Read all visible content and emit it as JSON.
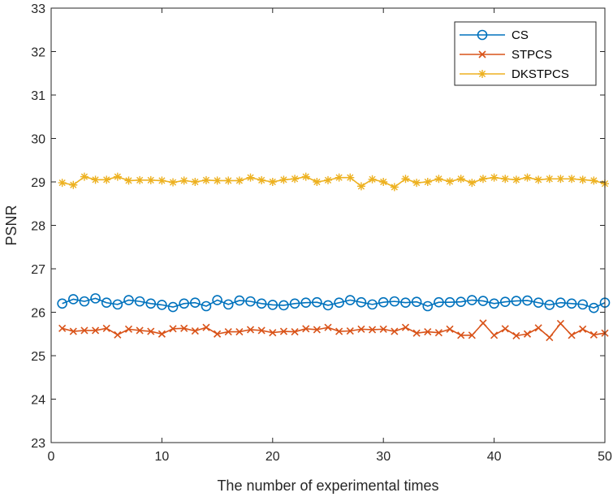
{
  "chart_data": {
    "type": "line",
    "title": "",
    "xlabel": "The number of experimental times",
    "ylabel": "PSNR",
    "xlim": [
      0,
      50
    ],
    "ylim": [
      23,
      33
    ],
    "xticks": [
      0,
      10,
      20,
      30,
      40,
      50
    ],
    "yticks": [
      23,
      24,
      25,
      26,
      27,
      28,
      29,
      30,
      31,
      32,
      33
    ],
    "grid": false,
    "legend_position": "top-right",
    "x": [
      1,
      2,
      3,
      4,
      5,
      6,
      7,
      8,
      9,
      10,
      11,
      12,
      13,
      14,
      15,
      16,
      17,
      18,
      19,
      20,
      21,
      22,
      23,
      24,
      25,
      26,
      27,
      28,
      29,
      30,
      31,
      32,
      33,
      34,
      35,
      36,
      37,
      38,
      39,
      40,
      41,
      42,
      43,
      44,
      45,
      46,
      47,
      48,
      49,
      50
    ],
    "series": [
      {
        "name": "CS",
        "color": "#0072BD",
        "marker": "circle",
        "values": [
          26.2,
          26.3,
          26.25,
          26.32,
          26.22,
          26.18,
          26.28,
          26.25,
          26.2,
          26.17,
          26.12,
          26.2,
          26.22,
          26.14,
          26.28,
          26.18,
          26.27,
          26.25,
          26.2,
          26.17,
          26.16,
          26.2,
          26.22,
          26.23,
          26.16,
          26.22,
          26.28,
          26.23,
          26.18,
          26.23,
          26.25,
          26.22,
          26.24,
          26.14,
          26.23,
          26.23,
          26.24,
          26.28,
          26.26,
          26.2,
          26.24,
          26.26,
          26.27,
          26.22,
          26.17,
          26.22,
          26.2,
          26.18,
          26.1,
          26.22
        ]
      },
      {
        "name": "STPCS",
        "color": "#D95319",
        "marker": "x",
        "values": [
          25.63,
          25.56,
          25.58,
          25.58,
          25.63,
          25.48,
          25.61,
          25.58,
          25.56,
          25.5,
          25.62,
          25.63,
          25.57,
          25.65,
          25.5,
          25.55,
          25.55,
          25.6,
          25.58,
          25.53,
          25.56,
          25.55,
          25.62,
          25.6,
          25.65,
          25.56,
          25.57,
          25.61,
          25.6,
          25.61,
          25.56,
          25.65,
          25.52,
          25.55,
          25.53,
          25.61,
          25.47,
          25.47,
          25.75,
          25.47,
          25.62,
          25.46,
          25.5,
          25.64,
          25.42,
          25.74,
          25.47,
          25.61,
          25.48,
          25.52
        ]
      },
      {
        "name": "DKSTPCS",
        "color": "#EDB120",
        "marker": "asterisk",
        "values": [
          28.98,
          28.93,
          29.12,
          29.05,
          29.05,
          29.12,
          29.03,
          29.04,
          29.04,
          29.03,
          28.99,
          29.03,
          29.0,
          29.04,
          29.03,
          29.03,
          29.03,
          29.1,
          29.04,
          29.0,
          29.05,
          29.07,
          29.12,
          29.0,
          29.04,
          29.1,
          29.1,
          28.9,
          29.06,
          29.0,
          28.88,
          29.07,
          28.98,
          29.0,
          29.07,
          29.01,
          29.07,
          28.98,
          29.07,
          29.1,
          29.07,
          29.05,
          29.1,
          29.05,
          29.07,
          29.07,
          29.07,
          29.05,
          29.03,
          28.96
        ]
      }
    ]
  }
}
